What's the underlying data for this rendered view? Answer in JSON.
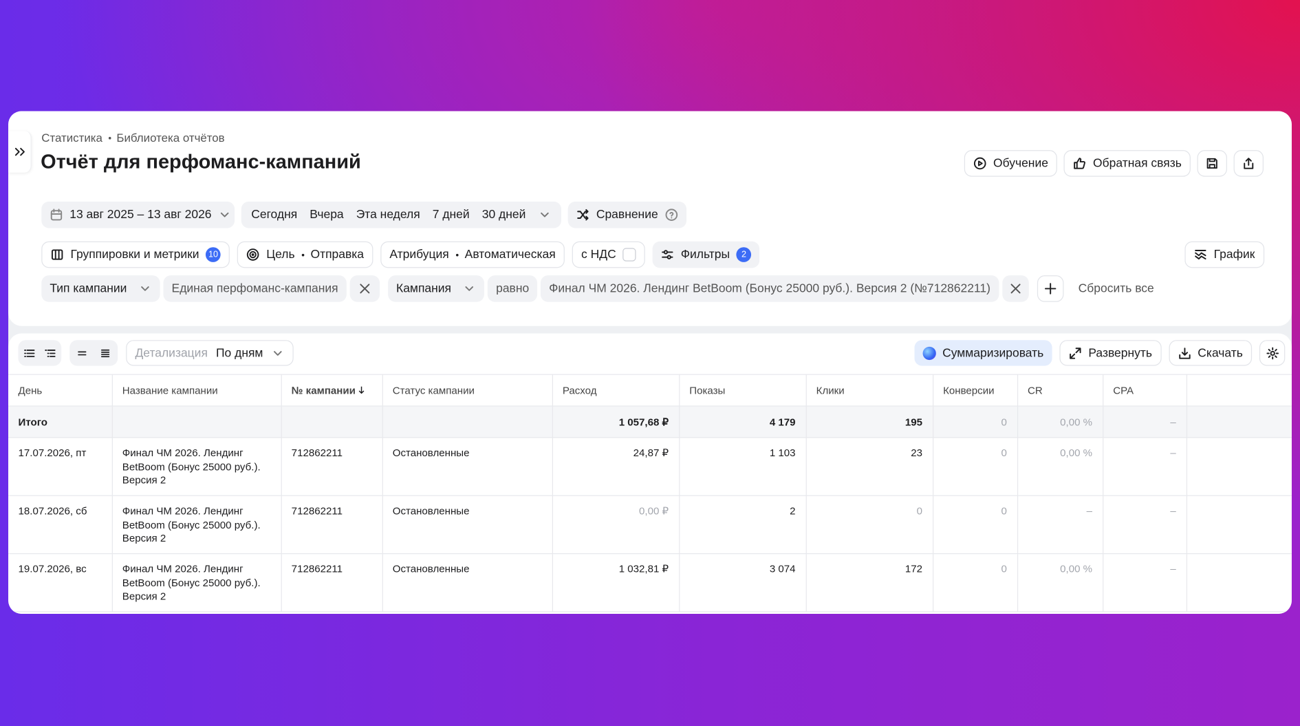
{
  "breadcrumbs": [
    "Статистика",
    "Библиотека отчётов"
  ],
  "title": "Отчёт для перфоманс-кампаний",
  "header_buttons": [
    "Обучение",
    "Обратная связь"
  ],
  "period": {
    "range": "13 авг 2025 – 13 авг 2026",
    "presets": [
      "Сегодня",
      "Вчера",
      "Эта неделя",
      "7 дней",
      "30 дней"
    ],
    "comparison": "Сравнение"
  },
  "settings": {
    "groupings": "Группировки и метрики",
    "groupings_count": "10",
    "goal": "Цель",
    "goal_value": "Отправка",
    "attribution": "Атрибуция",
    "attribution_value": "Автоматическая",
    "vat": "с НДС",
    "filters": "Фильтры",
    "filters_count": "2",
    "chart": "График"
  },
  "filters": [
    {
      "field": "Тип кампании",
      "value": "Единая перфоманс-кампания"
    },
    {
      "field": "Кампания",
      "operator": "равно",
      "value": "Финал ЧМ 2026. Лендинг BetBoom (Бонус 25000 руб.). Версия 2 (№712862211)"
    }
  ],
  "reset": "Сбросить все",
  "table_toolbar": {
    "detail_label": "Детализация",
    "detail_value": "По дням",
    "summarize": "Суммаризировать",
    "expand": "Развернуть",
    "download": "Скачать"
  },
  "table": {
    "columns": [
      "День",
      "Название кампании",
      "№ кампании",
      "Статус кампании",
      "Расход",
      "Показы",
      "Клики",
      "Конверсии",
      "CR",
      "CPA"
    ],
    "total": {
      "label": "Итого",
      "cells": [
        "1 057,68 ₽",
        "4 179",
        "195",
        "0",
        "0,00 %",
        "–"
      ]
    },
    "rows": [
      [
        "17.07.2026, пт",
        "Финал ЧМ 2026. Лендинг BetBoom (Бонус 25000 руб.). Версия 2",
        "712862211",
        "Остановленные",
        "24,87 ₽",
        "1 103",
        "23",
        "0",
        "0,00 %",
        "–"
      ],
      [
        "18.07.2026, сб",
        "Финал ЧМ 2026. Лендинг BetBoom (Бонус 25000 руб.). Версия 2",
        "712862211",
        "Остановленные",
        "0,00 ₽",
        "2",
        "0",
        "0",
        "–",
        "–"
      ],
      [
        "19.07.2026, вс",
        "Финал ЧМ 2026. Лендинг BetBoom (Бонус 25000 руб.). Версия 2",
        "712862211",
        "Остановленные",
        "1 032,81 ₽",
        "3 074",
        "172",
        "0",
        "0,00 %",
        "–"
      ]
    ]
  }
}
